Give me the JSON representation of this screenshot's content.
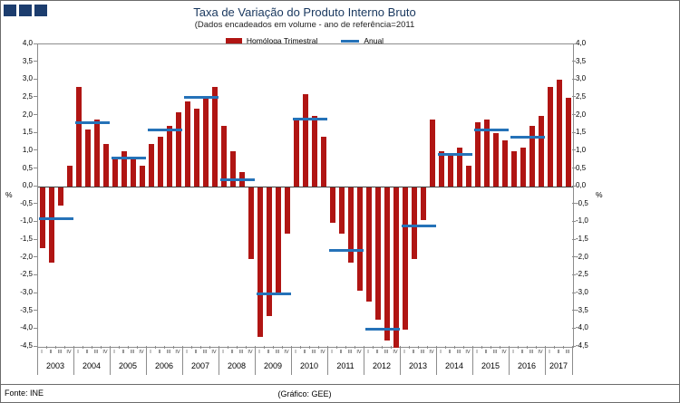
{
  "header": {
    "title": "Taxa de Variação do Produto Interno Bruto",
    "subtitle": "(Dados encadeados em volume - ano de referência=2011"
  },
  "legend": {
    "items": [
      {
        "label": "Homóloga Trimestral",
        "type": "bar",
        "color": "#b01513"
      },
      {
        "label": "Anual",
        "type": "line",
        "color": "#2572b8"
      }
    ]
  },
  "axes": {
    "unit_left": "%",
    "unit_right": "%",
    "ymax": 4.0,
    "ymin": -4.5,
    "step": 0.5,
    "tick_labels": [
      "4,0",
      "3,5",
      "3,0",
      "2,5",
      "2,0",
      "1,5",
      "1,0",
      "0,5",
      "0,0",
      "-0,5",
      "-1,0",
      "-1,5",
      "-2,0",
      "-2,5",
      "-3,0",
      "-3,5",
      "-4,0",
      "-4,5"
    ]
  },
  "footer": {
    "source": "Fonte: INE",
    "credit": "(Gráfico: GEE)"
  },
  "chart_data": {
    "type": "bar",
    "title": "Taxa de Variação do Produto Interno Bruto",
    "subtitle": "(Dados encadeados em volume - ano de referência=2011",
    "ylabel": "%",
    "ylim": [
      -4.5,
      4.0
    ],
    "grid": false,
    "legend_position": "top",
    "series_info": [
      {
        "name": "Homóloga Trimestral",
        "type": "bar",
        "color": "#b01513"
      },
      {
        "name": "Anual",
        "type": "line",
        "color": "#2572b8"
      }
    ],
    "years": [
      {
        "year": "2003",
        "quarters": [
          "I",
          "II",
          "III",
          "IV"
        ],
        "homologa_trimestral": [
          -1.7,
          -2.1,
          -0.5,
          0.6
        ],
        "anual": -0.9
      },
      {
        "year": "2004",
        "quarters": [
          "I",
          "II",
          "III",
          "IV"
        ],
        "homologa_trimestral": [
          2.8,
          1.6,
          1.9,
          1.2
        ],
        "anual": 1.8
      },
      {
        "year": "2005",
        "quarters": [
          "I",
          "II",
          "III",
          "IV"
        ],
        "homologa_trimestral": [
          0.8,
          1.0,
          0.8,
          0.6
        ],
        "anual": 0.8
      },
      {
        "year": "2006",
        "quarters": [
          "I",
          "II",
          "III",
          "IV"
        ],
        "homologa_trimestral": [
          1.2,
          1.4,
          1.7,
          2.1
        ],
        "anual": 1.6
      },
      {
        "year": "2007",
        "quarters": [
          "I",
          "II",
          "III",
          "IV"
        ],
        "homologa_trimestral": [
          2.4,
          2.2,
          2.5,
          2.8
        ],
        "anual": 2.5
      },
      {
        "year": "2008",
        "quarters": [
          "I",
          "II",
          "III",
          "IV"
        ],
        "homologa_trimestral": [
          1.7,
          1.0,
          0.4,
          -2.0
        ],
        "anual": 0.2
      },
      {
        "year": "2009",
        "quarters": [
          "I",
          "II",
          "III",
          "IV"
        ],
        "homologa_trimestral": [
          -4.2,
          -3.6,
          -3.0,
          -1.3
        ],
        "anual": -3.0
      },
      {
        "year": "2010",
        "quarters": [
          "I",
          "II",
          "III",
          "IV"
        ],
        "homologa_trimestral": [
          1.9,
          2.6,
          2.0,
          1.4
        ],
        "anual": 1.9
      },
      {
        "year": "2011",
        "quarters": [
          "I",
          "II",
          "III",
          "IV"
        ],
        "homologa_trimestral": [
          -1.0,
          -1.3,
          -2.1,
          -2.9
        ],
        "anual": -1.8
      },
      {
        "year": "2012",
        "quarters": [
          "I",
          "II",
          "III",
          "IV"
        ],
        "homologa_trimestral": [
          -3.2,
          -3.7,
          -4.3,
          -4.5
        ],
        "anual": -4.0
      },
      {
        "year": "2013",
        "quarters": [
          "I",
          "II",
          "III",
          "IV"
        ],
        "homologa_trimestral": [
          -4.0,
          -2.0,
          -0.9,
          1.9
        ],
        "anual": -1.1
      },
      {
        "year": "2014",
        "quarters": [
          "I",
          "II",
          "III",
          "IV"
        ],
        "homologa_trimestral": [
          1.0,
          0.9,
          1.1,
          0.6
        ],
        "anual": 0.9
      },
      {
        "year": "2015",
        "quarters": [
          "I",
          "II",
          "III",
          "IV"
        ],
        "homologa_trimestral": [
          1.8,
          1.9,
          1.5,
          1.3
        ],
        "anual": 1.6
      },
      {
        "year": "2016",
        "quarters": [
          "I",
          "II",
          "III",
          "IV"
        ],
        "homologa_trimestral": [
          1.0,
          1.1,
          1.7,
          2.0
        ],
        "anual": 1.4
      },
      {
        "year": "2017",
        "quarters": [
          "I",
          "II",
          "III"
        ],
        "homologa_trimestral": [
          2.8,
          3.0,
          2.5
        ],
        "anual": null
      }
    ]
  }
}
